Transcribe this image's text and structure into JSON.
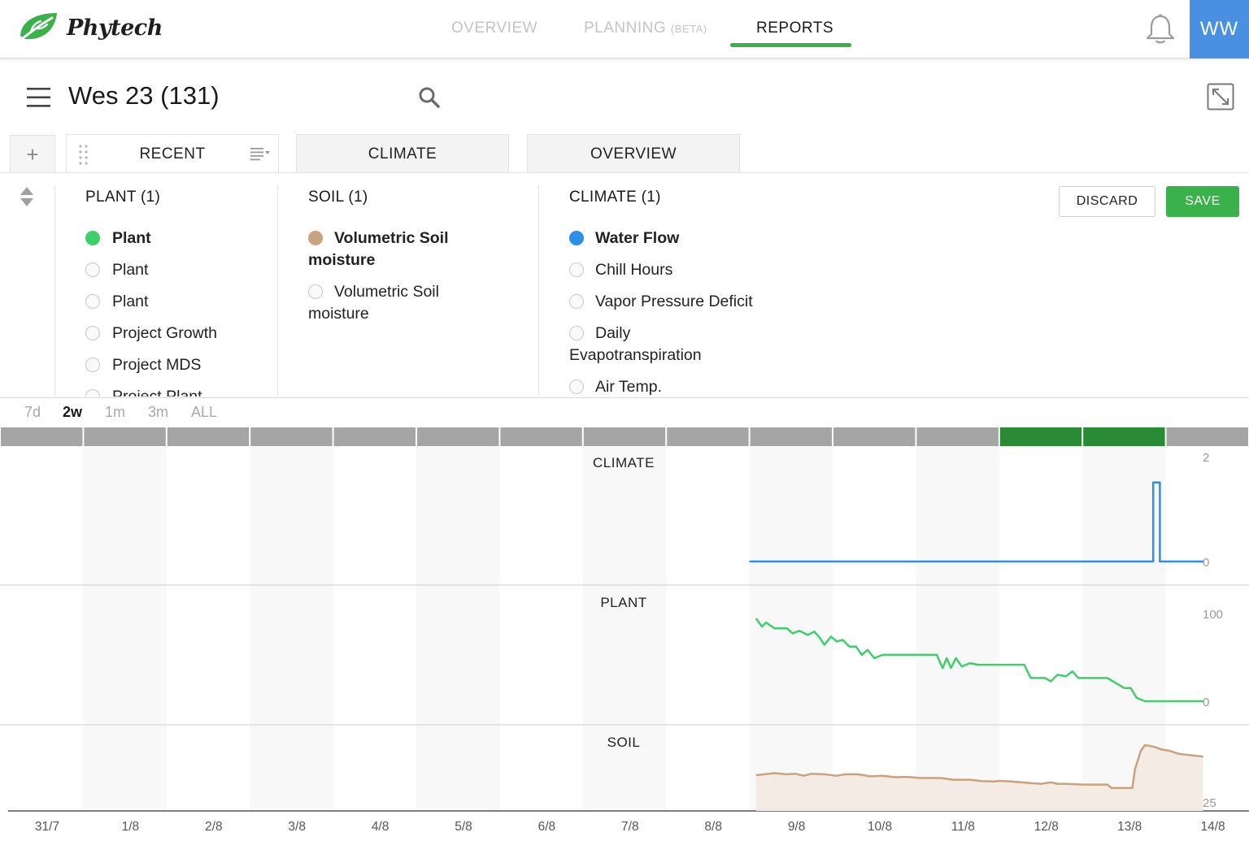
{
  "brand": {
    "name": "Phytech",
    "logo_icon": "leaf-icon",
    "brand_color": "#3ab14a"
  },
  "topnav": {
    "items": [
      {
        "label": "OVERVIEW",
        "suffix": ""
      },
      {
        "label": "PLANNING",
        "suffix": "(BETA)"
      },
      {
        "label": "REPORTS",
        "suffix": ""
      }
    ],
    "active": "REPORTS",
    "bell_icon": "bell-icon",
    "user_initials": "WW",
    "avatar_color": "#4a90e2"
  },
  "page": {
    "title": "Wes 23 (131)",
    "menu_icon": "hamburger-icon",
    "search_icon": "search-icon",
    "expand_icon": "expand-icon"
  },
  "tabs": {
    "add_label": "+",
    "items": [
      {
        "label": "RECENT",
        "active": true
      },
      {
        "label": "CLIMATE",
        "active": false
      },
      {
        "label": "OVERVIEW",
        "active": false
      }
    ]
  },
  "panel": {
    "plant": {
      "heading": "PLANT (1)",
      "items": [
        {
          "label": "Plant",
          "selected": true
        },
        {
          "label": "Plant",
          "selected": false
        },
        {
          "label": "Plant",
          "selected": false
        },
        {
          "label": "Project Growth",
          "selected": false
        },
        {
          "label": "Project MDS",
          "selected": false
        },
        {
          "label": "Project Plant",
          "selected": false
        }
      ]
    },
    "soil": {
      "heading": "SOIL (1)",
      "items": [
        {
          "line1": "Volumetric Soil",
          "line2": "moisture",
          "selected": true
        },
        {
          "line1": "Volumetric Soil",
          "line2": "moisture",
          "selected": false
        }
      ]
    },
    "climate": {
      "heading": "CLIMATE (1)",
      "items": [
        {
          "label": "Water Flow",
          "selected": true
        },
        {
          "label": "Chill Hours",
          "selected": false
        },
        {
          "label": "Vapor Pressure Deficit",
          "selected": false
        },
        {
          "line1": "Daily",
          "line2": "Evapotranspiration",
          "selected": false
        },
        {
          "label": "Air Temp.",
          "selected": false
        }
      ]
    },
    "discard_label": "DISCARD",
    "save_label": "SAVE",
    "colors": {
      "plant": "#3fcf6a",
      "soil": "#c9a27f",
      "climate": "#2d8fe6"
    }
  },
  "ranges": {
    "items": [
      "7d",
      "2w",
      "1m",
      "3m",
      "ALL"
    ],
    "active": "2w"
  },
  "chart_data": {
    "type": "line",
    "x_dates": [
      "31/7",
      "1/8",
      "2/8",
      "3/8",
      "4/8",
      "5/8",
      "6/8",
      "7/8",
      "8/8",
      "9/8",
      "10/8",
      "11/8",
      "12/8",
      "13/8",
      "14/8"
    ],
    "highlight_days": [
      "12/8",
      "13/8"
    ],
    "panels": [
      {
        "title": "CLIMATE",
        "color": "#2d8fe6",
        "y_ticks": [
          "2",
          "0"
        ],
        "ylim": [
          0,
          2
        ],
        "fill": false,
        "points": [
          [
            9.0,
            0
          ],
          [
            13.85,
            0
          ],
          [
            13.85,
            1.8
          ],
          [
            13.93,
            1.8
          ],
          [
            13.93,
            0
          ],
          [
            14.45,
            0
          ]
        ]
      },
      {
        "title": "PLANT",
        "color": "#3fcf6a",
        "y_ticks": [
          "100",
          "0"
        ],
        "ylim": [
          0,
          100
        ],
        "fill": false,
        "points": [
          [
            9.08,
            100
          ],
          [
            9.15,
            90
          ],
          [
            9.2,
            95
          ],
          [
            9.3,
            88
          ],
          [
            9.45,
            88
          ],
          [
            9.52,
            82
          ],
          [
            9.6,
            85
          ],
          [
            9.7,
            80
          ],
          [
            9.78,
            84
          ],
          [
            9.85,
            76
          ],
          [
            9.9,
            68
          ],
          [
            9.98,
            78
          ],
          [
            10.05,
            72
          ],
          [
            10.12,
            74
          ],
          [
            10.2,
            66
          ],
          [
            10.28,
            66
          ],
          [
            10.35,
            56
          ],
          [
            10.42,
            62
          ],
          [
            10.5,
            52
          ],
          [
            10.6,
            56
          ],
          [
            10.7,
            56
          ],
          [
            11.0,
            56
          ],
          [
            11.25,
            56
          ],
          [
            11.32,
            40
          ],
          [
            11.37,
            52
          ],
          [
            11.42,
            40
          ],
          [
            11.48,
            52
          ],
          [
            11.55,
            42
          ],
          [
            11.65,
            46
          ],
          [
            11.75,
            44
          ],
          [
            11.85,
            44
          ],
          [
            12.3,
            44
          ],
          [
            12.38,
            28
          ],
          [
            12.55,
            28
          ],
          [
            12.62,
            24
          ],
          [
            12.7,
            32
          ],
          [
            12.8,
            30
          ],
          [
            12.88,
            36
          ],
          [
            12.95,
            28
          ],
          [
            13.0,
            28
          ],
          [
            13.3,
            28
          ],
          [
            13.4,
            22
          ],
          [
            13.5,
            16
          ],
          [
            13.58,
            16
          ],
          [
            13.65,
            4
          ],
          [
            13.75,
            0
          ],
          [
            14.45,
            0
          ]
        ]
      },
      {
        "title": "SOIL",
        "color": "#c9a27f",
        "y_ticks": [
          "25"
        ],
        "ylim": [
          25,
          50
        ],
        "fill": true,
        "points": [
          [
            9.08,
            37.5
          ],
          [
            9.3,
            38.2
          ],
          [
            9.45,
            37.8
          ],
          [
            9.55,
            38.0
          ],
          [
            9.65,
            37.3
          ],
          [
            9.75,
            38.0
          ],
          [
            9.9,
            37.8
          ],
          [
            10.05,
            37.3
          ],
          [
            10.15,
            37.8
          ],
          [
            10.3,
            37.8
          ],
          [
            10.45,
            37.1
          ],
          [
            10.6,
            37.3
          ],
          [
            10.75,
            36.8
          ],
          [
            10.9,
            36.9
          ],
          [
            11.05,
            36.5
          ],
          [
            11.3,
            36.5
          ],
          [
            11.45,
            35.9
          ],
          [
            11.65,
            35.9
          ],
          [
            11.8,
            35.4
          ],
          [
            11.95,
            35.3
          ],
          [
            12.0,
            35.5
          ],
          [
            12.15,
            35.3
          ],
          [
            12.35,
            34.8
          ],
          [
            12.5,
            34.5
          ],
          [
            12.62,
            35.0
          ],
          [
            12.7,
            34.5
          ],
          [
            12.8,
            34.5
          ],
          [
            13.0,
            34.2
          ],
          [
            13.3,
            34.2
          ],
          [
            13.35,
            33.0
          ],
          [
            13.5,
            33.0
          ],
          [
            13.6,
            33.0
          ],
          [
            13.63,
            39.5
          ],
          [
            13.7,
            46.0
          ],
          [
            13.75,
            48.0
          ],
          [
            13.85,
            47.5
          ],
          [
            13.95,
            46.5
          ],
          [
            14.05,
            46.0
          ],
          [
            14.15,
            45.0
          ],
          [
            14.3,
            44.5
          ],
          [
            14.45,
            44.0
          ]
        ]
      }
    ],
    "grid": true
  }
}
